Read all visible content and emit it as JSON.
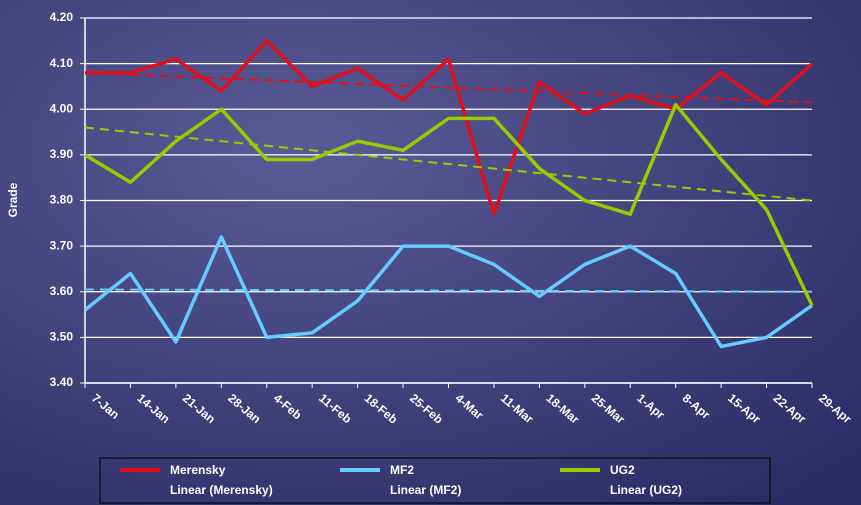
{
  "chart_data": {
    "type": "line",
    "y_label": "Grade",
    "categories": [
      "7-Jan",
      "14-Jan",
      "21-Jan",
      "28-Jan",
      "4-Feb",
      "11-Feb",
      "18-Feb",
      "25-Feb",
      "4-Mar",
      "11-Mar",
      "18-Mar",
      "25-Mar",
      "1-Apr",
      "8-Apr",
      "15-Apr",
      "22-Apr",
      "29-Apr"
    ],
    "ylim": [
      3.4,
      4.2
    ],
    "yticks": [
      {
        "value": 3.4,
        "label": "3.40"
      },
      {
        "value": 3.5,
        "label": "3.50"
      },
      {
        "value": 3.6,
        "label": "3.60"
      },
      {
        "value": 3.7,
        "label": "3.70"
      },
      {
        "value": 3.8,
        "label": "3.80"
      },
      {
        "value": 3.9,
        "label": "3.90"
      },
      {
        "value": 4.0,
        "label": "4.00"
      },
      {
        "value": 4.1,
        "label": "4.10"
      },
      {
        "value": 4.2,
        "label": "4.20"
      }
    ],
    "grid": true,
    "series": [
      {
        "name": "Merensky",
        "color": "#e0101a",
        "values": [
          4.08,
          4.08,
          4.11,
          4.04,
          4.15,
          4.05,
          4.09,
          4.02,
          4.11,
          3.77,
          4.06,
          3.99,
          4.03,
          4.0,
          4.08,
          4.01,
          4.1
        ],
        "trend_name": "Linear (Merensky)",
        "trend": [
          4.08,
          4.015
        ]
      },
      {
        "name": "MF2",
        "color": "#66ccff",
        "values": [
          3.56,
          3.64,
          3.49,
          3.72,
          3.5,
          3.51,
          3.58,
          3.7,
          3.7,
          3.66,
          3.59,
          3.66,
          3.7,
          3.64,
          3.48,
          3.5,
          3.57
        ],
        "trend_name": "Linear (MF2)",
        "trend": [
          3.605,
          3.6
        ]
      },
      {
        "name": "UG2",
        "color": "#99cc00",
        "values": [
          3.9,
          3.84,
          3.93,
          4.0,
          3.89,
          3.89,
          3.93,
          3.91,
          3.98,
          3.98,
          3.87,
          3.8,
          3.77,
          4.01,
          3.89,
          3.78,
          3.57
        ],
        "trend_name": "Linear (UG2)",
        "trend": [
          3.96,
          3.8
        ]
      }
    ]
  }
}
